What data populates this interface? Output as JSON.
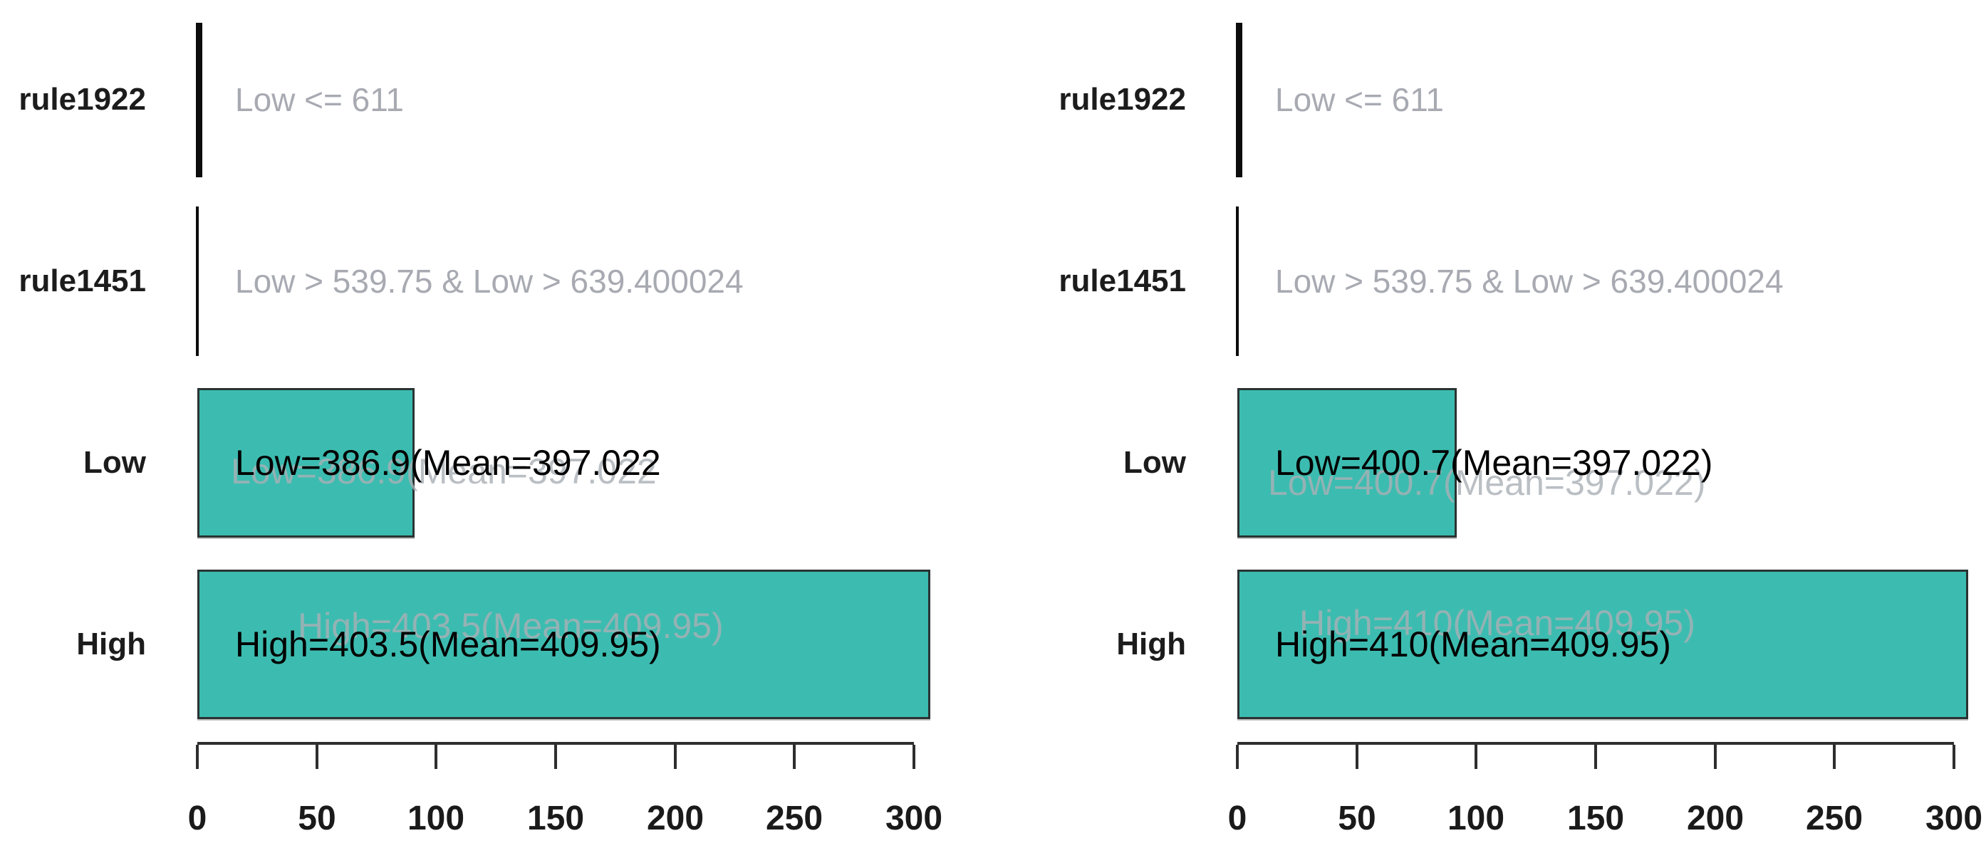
{
  "figure": {
    "background": "#ffffff",
    "description": "Two side-by-side horizontal bar charts of rule frequencies with condition annotations"
  },
  "palette": {
    "bar_fill": "#3cbcb0",
    "bar_border": "#2a3332",
    "rule_bar": "#0c0c0c",
    "axis": "#2e2e2e",
    "tick_label": "#1a1a1a",
    "row_label": "#1c1c1c",
    "condition_text": "#a8aab2",
    "bar_label": "#000000",
    "ghost_label": "#aab0b6"
  },
  "chart_data": [
    {
      "type": "bar",
      "orientation": "horizontal",
      "title": "",
      "xlabel": "",
      "ylabel": "",
      "xlim": [
        0,
        300
      ],
      "xticks": [
        0,
        50,
        100,
        150,
        200,
        250,
        300
      ],
      "grid": false,
      "legend": false,
      "categories": [
        "rule1922",
        "rule1451",
        "Low",
        "High"
      ],
      "rows": [
        {
          "category": "rule1922",
          "value": 0,
          "bar_style": "rule-line-thick",
          "annotation": "Low <= 611",
          "annotation_style": "muted"
        },
        {
          "category": "rule1451",
          "value": 0,
          "bar_style": "rule-line-thin",
          "annotation": "Low > 539.75 & Low > 639.400024",
          "annotation_style": "muted"
        },
        {
          "category": "Low",
          "value": 91,
          "bar_style": "value-bar",
          "annotation": "Low=386.9(Mean=397.022",
          "annotation_style": "solid",
          "ghost_annotation": "Low=386.9(Mean=397.022"
        },
        {
          "category": "High",
          "value": 307,
          "bar_style": "value-bar",
          "annotation": "High=403.5(Mean=409.95)",
          "annotation_style": "solid",
          "ghost_annotation": "High=403.5(Mean=409.95)"
        }
      ]
    },
    {
      "type": "bar",
      "orientation": "horizontal",
      "title": "",
      "xlabel": "",
      "ylabel": "",
      "xlim": [
        0,
        300
      ],
      "xticks": [
        0,
        50,
        100,
        150,
        200,
        250,
        300
      ],
      "grid": false,
      "legend": false,
      "categories": [
        "rule1922",
        "rule1451",
        "Low",
        "High"
      ],
      "rows": [
        {
          "category": "rule1922",
          "value": 0,
          "bar_style": "rule-line-thick",
          "annotation": "Low <= 611",
          "annotation_style": "muted"
        },
        {
          "category": "rule1451",
          "value": 0,
          "bar_style": "rule-line-thin",
          "annotation": "Low > 539.75 & Low > 639.400024",
          "annotation_style": "muted"
        },
        {
          "category": "Low",
          "value": 92,
          "bar_style": "value-bar",
          "annotation": "Low=400.7(Mean=397.022)",
          "annotation_style": "solid",
          "ghost_annotation": "Low=400.7(Mean=397.022)"
        },
        {
          "category": "High",
          "value": 306,
          "bar_style": "value-bar",
          "annotation": "High=410(Mean=409.95)",
          "annotation_style": "solid",
          "ghost_annotation": "High=410(Mean=409.95)"
        }
      ]
    }
  ]
}
